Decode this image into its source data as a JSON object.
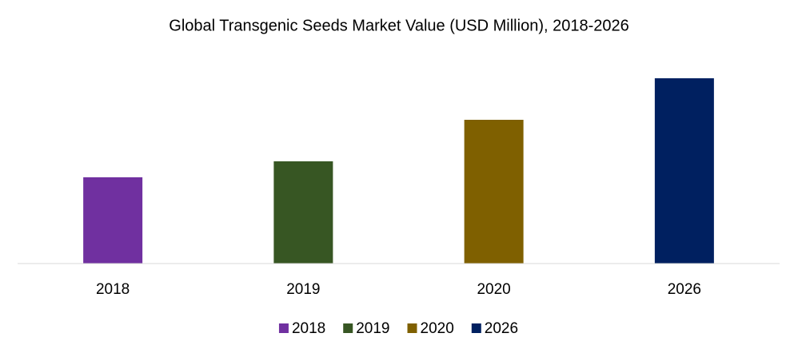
{
  "chart_data": {
    "type": "bar",
    "title": "Global Transgenic Seeds Market Value (USD Million), 2018-2026",
    "categories": [
      "2018",
      "2019",
      "2020",
      "2026"
    ],
    "values": [
      108,
      128,
      180,
      232
    ],
    "colors": [
      "#7030a0",
      "#375623",
      "#7f6000",
      "#002060"
    ],
    "ylim": [
      0,
      270
    ],
    "legend": "bottom"
  }
}
